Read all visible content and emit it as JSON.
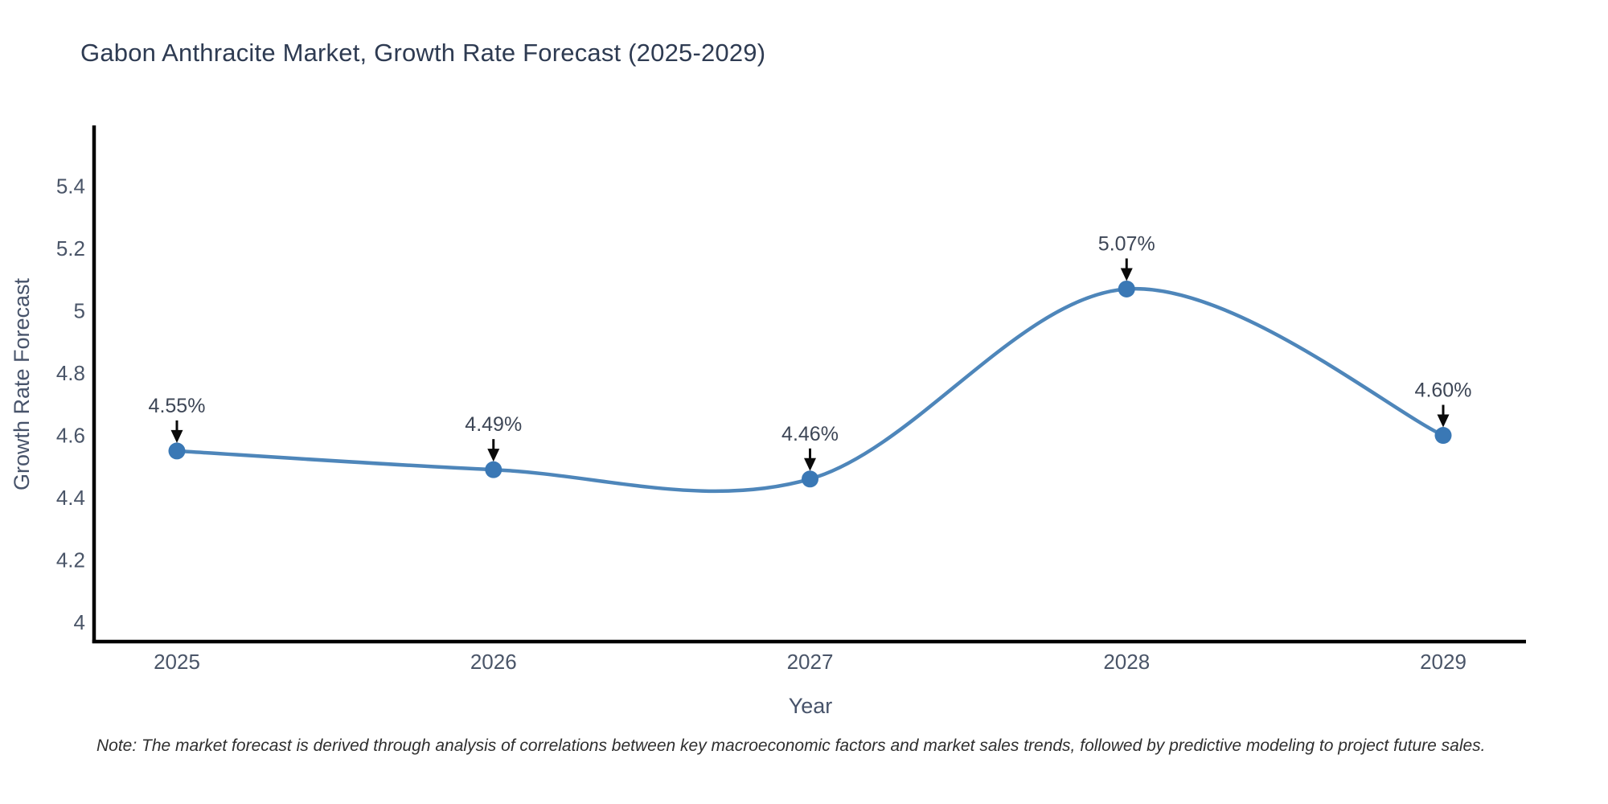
{
  "title": "Gabon Anthracite Market, Growth Rate Forecast (2025-2029)",
  "note": "Note: The market forecast is derived through analysis of correlations between key macroeconomic factors and market sales trends, followed by predictive modeling to project future sales.",
  "chart_data": {
    "type": "line",
    "title": "Gabon Anthracite Market, Growth Rate Forecast (2025-2029)",
    "xlabel": "Year",
    "ylabel": "Growth Rate Forecast",
    "categories": [
      "2025",
      "2026",
      "2027",
      "2028",
      "2029"
    ],
    "series": [
      {
        "name": "Growth Rate Forecast",
        "values": [
          4.55,
          4.49,
          4.46,
          5.07,
          4.6
        ],
        "data_labels": [
          "4.55%",
          "4.49%",
          "4.46%",
          "5.07%",
          "4.60%"
        ]
      }
    ],
    "y_ticks": [
      4,
      4.2,
      4.4,
      4.6,
      4.8,
      5,
      5.2,
      5.4
    ],
    "y_tick_labels": [
      "4",
      "4.2",
      "4.4",
      "4.6",
      "4.8",
      "5",
      "5.2",
      "5.4"
    ],
    "ylim": [
      3.938,
      5.59
    ],
    "line_shape": "spline",
    "grid": false,
    "legend": "none",
    "colors": {
      "line": "#4e86ba",
      "marker": "#3a78b5",
      "axis": "#000000",
      "tick_label": "#4a5568",
      "title": "#2e3b52",
      "annotation_text": "#3d4656",
      "annotation_arrow": "#0a0a0a",
      "note": "#2f2f2f",
      "background": "#ffffff"
    }
  }
}
